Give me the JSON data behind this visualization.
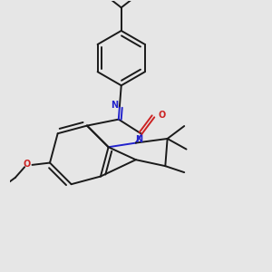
{
  "bg_color": "#e6e6e6",
  "bond_color": "#1a1a1a",
  "n_color": "#2222cc",
  "o_color": "#cc2222",
  "lw": 1.4,
  "dbo": 0.025,
  "figsize": [
    3.0,
    3.0
  ],
  "dpi": 100,
  "xlim": [
    -2.5,
    3.5
  ],
  "ylim": [
    -3.2,
    3.2
  ]
}
